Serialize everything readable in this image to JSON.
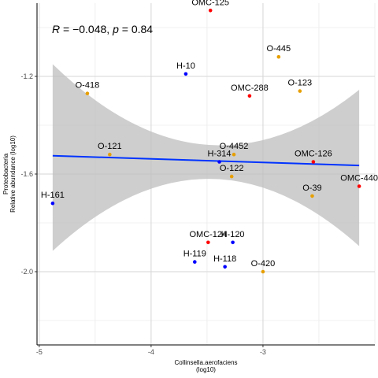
{
  "chart_data": {
    "type": "scatter",
    "xlabel": [
      "Collinsella.aerofaciens",
      "(log10)"
    ],
    "ylabel": [
      "Proteobacteria",
      "Relative abundance (log10)"
    ],
    "xlim": [
      -5.02,
      -2.0
    ],
    "ylim": [
      -2.3,
      -0.9
    ],
    "x_ticks": [
      -5,
      -4,
      -3
    ],
    "x_tick_labels": [
      "-5",
      "-4",
      "-3"
    ],
    "y_ticks": [
      -2.0,
      -1.6,
      -1.2
    ],
    "y_tick_labels": [
      "-2.0",
      "-1.6",
      "-1.2"
    ],
    "grid": true,
    "annotation": {
      "r_symbol": "R",
      "r_value": " = −0.048, ",
      "p_symbol": "p",
      "p_value": " = 0.84"
    },
    "group_colors": {
      "H": "#0000ff",
      "O": "#e69f00",
      "OMC": "#ff0000"
    },
    "points": [
      {
        "label": "OMC-125",
        "group": "OMC",
        "x": -3.47,
        "y": -0.93
      },
      {
        "label": "O-445",
        "group": "O",
        "x": -2.86,
        "y": -1.12
      },
      {
        "label": "H-10",
        "group": "H",
        "x": -3.69,
        "y": -1.19
      },
      {
        "label": "O-123",
        "group": "O",
        "x": -2.67,
        "y": -1.26
      },
      {
        "label": "OMC-288",
        "group": "OMC",
        "x": -3.12,
        "y": -1.28
      },
      {
        "label": "O-418",
        "group": "O",
        "x": -4.57,
        "y": -1.27
      },
      {
        "label": "O-121",
        "group": "O",
        "x": -4.37,
        "y": -1.52
      },
      {
        "label": "O-4452",
        "group": "O",
        "x": -3.26,
        "y": -1.52
      },
      {
        "label": "H-314",
        "group": "H",
        "x": -3.39,
        "y": -1.55
      },
      {
        "label": "O-122",
        "group": "O",
        "x": -3.28,
        "y": -1.61
      },
      {
        "label": "OMC-126",
        "group": "OMC",
        "x": -2.55,
        "y": -1.55
      },
      {
        "label": "OMC-440",
        "group": "OMC",
        "x": -2.14,
        "y": -1.65
      },
      {
        "label": "O-39",
        "group": "O",
        "x": -2.56,
        "y": -1.69
      },
      {
        "label": "H-161",
        "group": "H",
        "x": -4.88,
        "y": -1.72
      },
      {
        "label": "OMC-124",
        "group": "OMC",
        "x": -3.49,
        "y": -1.88
      },
      {
        "label": "H-120",
        "group": "H",
        "x": -3.27,
        "y": -1.88
      },
      {
        "label": "H-119",
        "group": "H",
        "x": -3.61,
        "y": -1.96
      },
      {
        "label": "H-118",
        "group": "H",
        "x": -3.34,
        "y": -1.98
      },
      {
        "label": "O-420",
        "group": "O",
        "x": -3.0,
        "y": -2.0
      }
    ],
    "regression": {
      "color": "#0033ff",
      "band_color": "#bebebe",
      "x_range": [
        -4.88,
        -2.14
      ],
      "y_start": -1.525,
      "y_end": -1.565,
      "ci_start": [
        -1.915,
        -1.15
      ],
      "ci_end": [
        -1.895,
        -1.255
      ],
      "ci_mid_x": -3.51,
      "ci_mid": [
        -1.62,
        -1.48
      ]
    }
  }
}
